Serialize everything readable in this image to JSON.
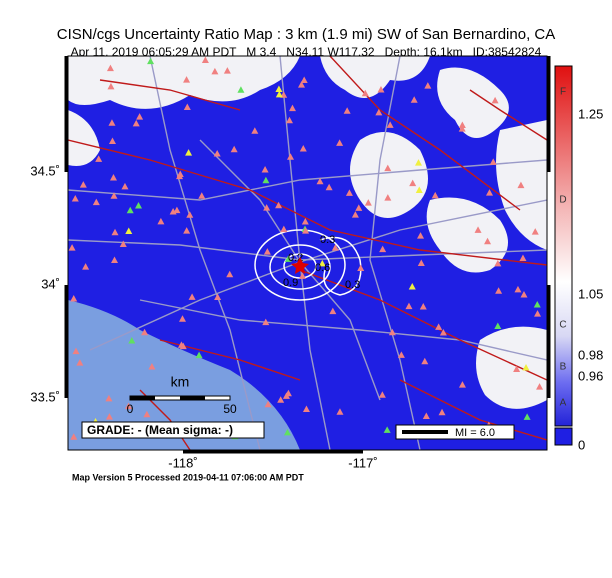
{
  "header": {
    "title": "CISN/cgs Uncertainty Ratio Map : 3 km (1.9 mi) SW of San Bernardino, CA",
    "subtitle": "Apr 11, 2019 06:05:29 AM PDT   M 3.4   N34.11 W117.32   Depth: 16.1km   ID:38542824"
  },
  "map": {
    "lat_labels": [
      "34.5˚",
      "34˚",
      "33.5˚"
    ],
    "lon_labels": [
      "-118˚",
      "-117˚"
    ],
    "scale": {
      "unit": "km",
      "ticks": [
        "0",
        "50"
      ]
    },
    "grade": "GRADE: - (Mean sigma: -)",
    "legend": "MI = 6.0",
    "contour_labels": [
      "0.3",
      "0.2",
      "0.9",
      "0.6",
      "0.3"
    ]
  },
  "colorbar": {
    "grades": [
      "F",
      "D",
      "C",
      "B",
      "A"
    ],
    "values": [
      "1.25",
      "1.05",
      "0.98",
      "0.96",
      "0"
    ]
  },
  "footer": "Map Version 5 Processed 2019-04-11 07:06:00 AM PDT"
}
